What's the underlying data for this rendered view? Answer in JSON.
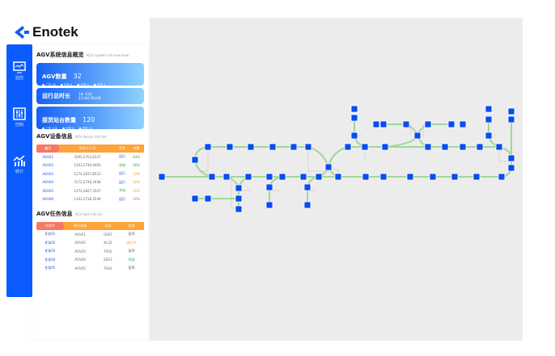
{
  "brand": {
    "name": "Enotek",
    "color": "#0a5cff"
  },
  "sidebar": {
    "items": [
      {
        "label": "监控",
        "icon": "monitor-icon"
      },
      {
        "label": "控制",
        "icon": "sliders-icon"
      },
      {
        "label": "统计",
        "icon": "chart-icon"
      }
    ]
  },
  "overview": {
    "title": "AGV系统信息概览",
    "subtitle": "AGV system info overview",
    "agv_count": {
      "label": "AGV数量",
      "value": "32",
      "stats": [
        "● 工作 16",
        "● 充电 8",
        "● 空闲 4",
        "● 异常 4"
      ]
    },
    "runtime": {
      "label": "运行总时长",
      "line1": "1年 33天",
      "line2": "23小时 50分钟"
    },
    "stations": {
      "label": "接货站台数量",
      "value": "120",
      "stats": [
        "● 工作 100",
        "● 空闲 8",
        "● 异常 12"
      ]
    }
  },
  "device": {
    "title": "AGV设备信息",
    "subtitle": "AGV device info list",
    "headers": [
      "编号",
      "坐标(X,Y,Z)",
      "状态",
      "电量"
    ],
    "rows": [
      [
        "AGV01",
        "3295,2763,8137",
        "运行",
        "83%"
      ],
      [
        "AGV02",
        "1203,2746,0093",
        "充电",
        "60%"
      ],
      [
        "AGV03",
        "1274,2837,8523",
        "运行",
        "52%"
      ],
      [
        "AGV04",
        "3172,2746,2638",
        "运行",
        "50%"
      ],
      [
        "AGV05",
        "1273,3827,3547",
        "充电",
        "45%"
      ],
      [
        "AGV06",
        "1303,2736,3549",
        "运行",
        "10%"
      ]
    ]
  },
  "task": {
    "title": "AGV任务信息",
    "subtitle": "AGV task info list",
    "headers": [
      "任务号",
      "执行车辆",
      "站点",
      "状态"
    ],
    "rows": [
      [
        "任务01",
        "AGV01",
        "G007",
        "暂停"
      ],
      [
        "任务02",
        "AGV02",
        "KL32",
        "进行中"
      ],
      [
        "任务03",
        "AGV03",
        "F032",
        "暂停"
      ],
      [
        "任务04",
        "AGV04",
        "SD11",
        "完成"
      ],
      [
        "任务05",
        "AGV05",
        "FS43",
        "暂停"
      ]
    ]
  },
  "map": {
    "node_color": "#0a4cf0",
    "path_color": "#9fd79a",
    "guide_color": "#d9a3a3"
  }
}
